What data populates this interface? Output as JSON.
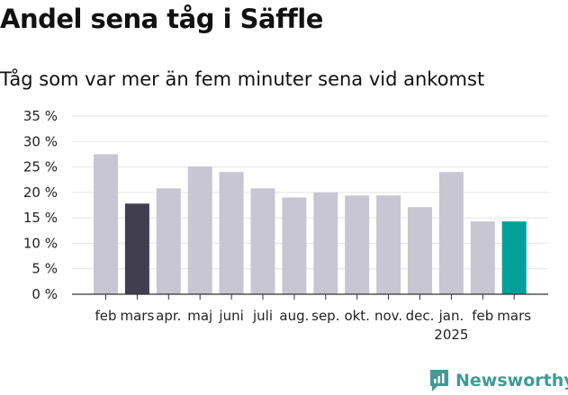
{
  "title": "Andel sena tåg i Säffle",
  "subtitle": "Tåg som var mer än fem minuter sena vid ankomst",
  "brand": {
    "name": "Newsworthy",
    "color": "#3e9c95",
    "icon": "newsworthy-logo-icon"
  },
  "colors": {
    "default_bar": "#c8c6d2",
    "highlight_prev": "#403e4f",
    "highlight_current": "#00a19a"
  },
  "chart_data": {
    "type": "bar",
    "title": "Andel sena tåg i Säffle",
    "subtitle": "Tåg som var mer än fem minuter sena vid ankomst",
    "xlabel": "",
    "ylabel": "",
    "ylim": [
      0,
      35
    ],
    "yticks": [
      "0 %",
      "5 %",
      "10 %",
      "15 %",
      "20 %",
      "25 %",
      "30 %",
      "35 %"
    ],
    "grid": true,
    "categories": [
      "feb",
      "mars",
      "apr.",
      "maj",
      "juni",
      "juli",
      "aug.",
      "sep.",
      "okt.",
      "nov.",
      "dec.",
      "jan.",
      "feb",
      "mars"
    ],
    "year_label": {
      "text": "2025",
      "under_index": 11
    },
    "values": [
      27.5,
      17.8,
      20.8,
      25.1,
      24.0,
      20.8,
      19.0,
      20.0,
      19.4,
      19.4,
      17.1,
      24.0,
      14.3,
      14.3
    ],
    "highlight": {
      "1": "highlight_prev",
      "13": "highlight_current"
    }
  }
}
